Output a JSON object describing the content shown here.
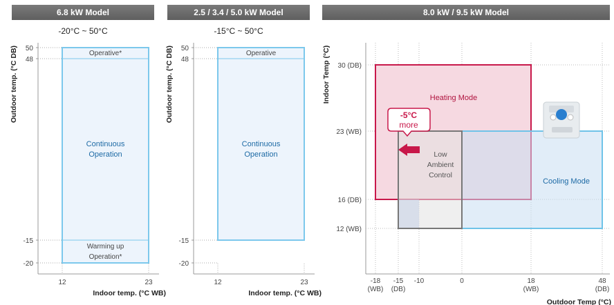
{
  "chart_data": [
    {
      "type": "area",
      "header": "6.8 kW Model",
      "range_text": "-20°C ~ 50°C",
      "xlabel": "Indoor temp. (°C WB)",
      "ylabel": "Outdoor temp. (°C DB)",
      "xlim": [
        12,
        23
      ],
      "ylim": [
        -20,
        50
      ],
      "x_ticks": [
        "12",
        "23"
      ],
      "y_ticks": [
        {
          "value": 50,
          "label": "50"
        },
        {
          "value": 48,
          "label": "48"
        },
        {
          "value": -15,
          "label": "-15"
        },
        {
          "value": -20,
          "label": "-20"
        }
      ],
      "regions": [
        {
          "label": "Operative*",
          "x": [
            12,
            23
          ],
          "y": [
            48,
            50
          ]
        },
        {
          "label": "Continuous\nOperation",
          "x": [
            12,
            23
          ],
          "y": [
            -15,
            48
          ]
        },
        {
          "label": "Warming up\nOperation*",
          "x": [
            12,
            23
          ],
          "y": [
            -20,
            -15
          ]
        }
      ]
    },
    {
      "type": "area",
      "header": "2.5 / 3.4 / 5.0 kW Model",
      "range_text": "-15°C ~ 50°C",
      "xlabel": "Indoor temp. (°C WB)",
      "ylabel": "Outdoor temp. (°C DB)",
      "xlim": [
        12,
        23
      ],
      "ylim": [
        -20,
        50
      ],
      "x_ticks": [
        "12",
        "23"
      ],
      "y_ticks": [
        {
          "value": 50,
          "label": "50"
        },
        {
          "value": 48,
          "label": "48"
        },
        {
          "value": -15,
          "label": "-15"
        },
        {
          "value": -20,
          "label": "-20"
        }
      ],
      "regions": [
        {
          "label": "Operative",
          "x": [
            12,
            23
          ],
          "y": [
            48,
            50
          ]
        },
        {
          "label": "Continuous\nOperation",
          "x": [
            12,
            23
          ],
          "y": [
            -15,
            48
          ]
        }
      ]
    },
    {
      "type": "area",
      "header": "8.0 kW / 9.5 kW Model",
      "xlabel": "Outdoor Temp (°C)",
      "ylabel": "Indoor Temp (°C)",
      "x_ticks": [
        {
          "value": -18,
          "label": "-18",
          "sub": "(WB)"
        },
        {
          "value": -15,
          "label": "-15",
          "sub": "(DB)"
        },
        {
          "value": -10,
          "label": "-10",
          "sub": ""
        },
        {
          "value": 0,
          "label": "0",
          "sub": ""
        },
        {
          "value": 18,
          "label": "18",
          "sub": "(WB)"
        },
        {
          "value": 48,
          "label": "48",
          "sub": "(DB)"
        }
      ],
      "y_ticks": [
        {
          "value": 30,
          "label": "30 (DB)"
        },
        {
          "value": 23,
          "label": "23 (WB)"
        },
        {
          "value": 16,
          "label": "16 (DB)"
        },
        {
          "value": 12,
          "label": "12 (WB)"
        }
      ],
      "regions": [
        {
          "label": "Heating Mode",
          "x": [
            -18,
            18
          ],
          "y": [
            16,
            30
          ],
          "color": "#c8184a"
        },
        {
          "label": "Cooling Mode",
          "x": [
            0,
            48
          ],
          "y": [
            12,
            23
          ],
          "color": "#6fc3e8"
        },
        {
          "label": "Low\nAmbient\nControl",
          "x": [
            -15,
            0
          ],
          "y": [
            12,
            23
          ],
          "color": "#777777"
        }
      ],
      "callout": {
        "line1": "-5°C",
        "line2": "more",
        "color": "#c8184a"
      },
      "icon": "outdoor-unit-controller-icon"
    }
  ]
}
